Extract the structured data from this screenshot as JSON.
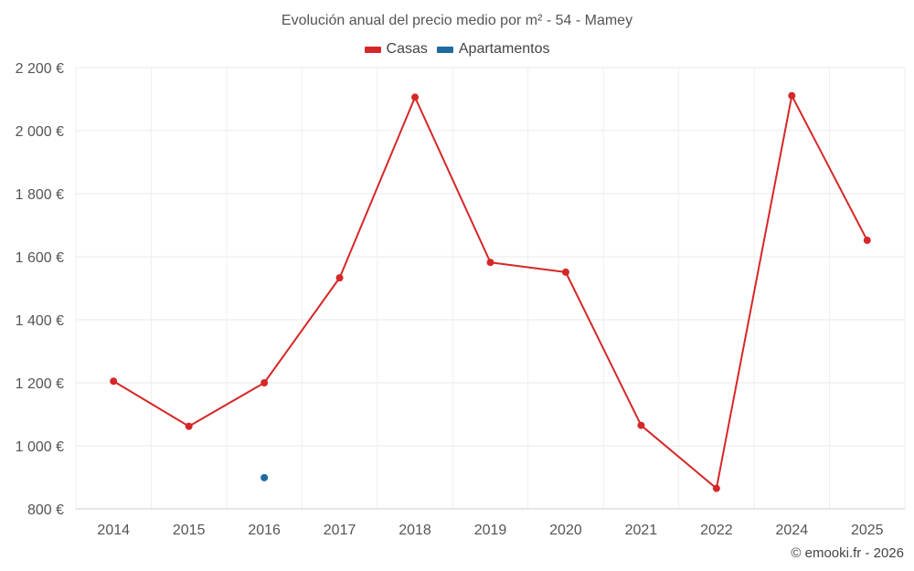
{
  "chart_data": {
    "type": "line",
    "title": "Evolución anual del precio medio por m² - 54 - Mamey",
    "categories": [
      "2014",
      "2015",
      "2016",
      "2017",
      "2018",
      "2019",
      "2020",
      "2021",
      "2022",
      "2024",
      "2025"
    ],
    "series": [
      {
        "name": "Casas",
        "color": "#d62728",
        "values": [
          1205,
          1062,
          1200,
          1533,
          2106,
          1582,
          1551,
          1065,
          865,
          2111,
          1652
        ]
      },
      {
        "name": "Apartamentos",
        "color": "#1f6aa0",
        "values": [
          null,
          null,
          899,
          null,
          null,
          null,
          null,
          null,
          null,
          null,
          null
        ]
      }
    ],
    "yticks": [
      800,
      1000,
      1200,
      1400,
      1600,
      1800,
      2000,
      2200
    ],
    "ytick_labels": [
      "800 €",
      "1 000 €",
      "1 200 €",
      "1 400 €",
      "1 600 €",
      "1 800 €",
      "2 000 €",
      "2 200 €"
    ],
    "ylim": [
      800,
      2200
    ],
    "grid": true,
    "legend": "top-center"
  },
  "credit": "© emooki.fr - 2026"
}
